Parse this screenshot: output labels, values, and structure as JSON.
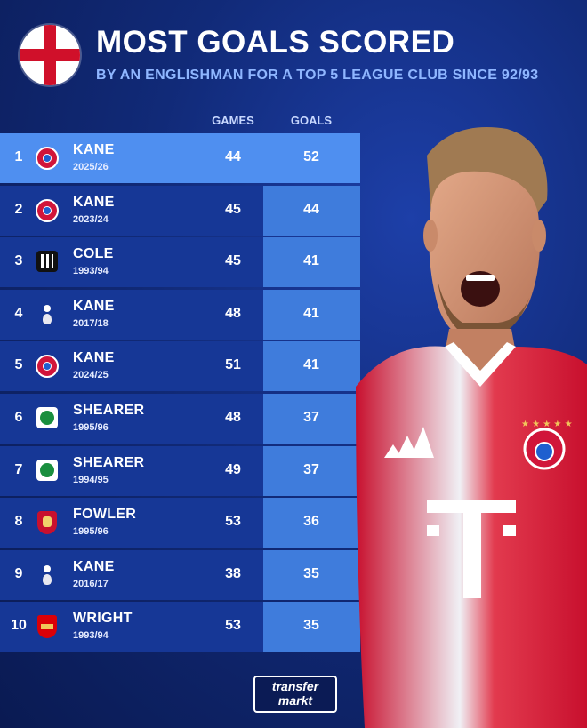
{
  "header": {
    "title": "MOST GOALS SCORED",
    "subtitle": "BY AN ENGLISHMAN FOR A TOP 5 LEAGUE CLUB SINCE 92/93",
    "flag_icon": "england-flag-icon"
  },
  "columns": {
    "games": "GAMES",
    "goals": "GOALS"
  },
  "rows": [
    {
      "rank": "1",
      "name": "KANE",
      "season": "2025/26",
      "games": "44",
      "goals": "52",
      "club": "bayern-munich-crest-icon"
    },
    {
      "rank": "2",
      "name": "KANE",
      "season": "2023/24",
      "games": "45",
      "goals": "44",
      "club": "bayern-munich-crest-icon"
    },
    {
      "rank": "3",
      "name": "COLE",
      "season": "1993/94",
      "games": "45",
      "goals": "41",
      "club": "newcastle-crest-icon"
    },
    {
      "rank": "4",
      "name": "KANE",
      "season": "2017/18",
      "games": "48",
      "goals": "41",
      "club": "tottenham-crest-icon"
    },
    {
      "rank": "5",
      "name": "KANE",
      "season": "2024/25",
      "games": "51",
      "goals": "41",
      "club": "bayern-munich-crest-icon"
    },
    {
      "rank": "6",
      "name": "SHEARER",
      "season": "1995/96",
      "games": "48",
      "goals": "37",
      "club": "blackburn-crest-icon"
    },
    {
      "rank": "7",
      "name": "SHEARER",
      "season": "1994/95",
      "games": "49",
      "goals": "37",
      "club": "blackburn-crest-icon"
    },
    {
      "rank": "8",
      "name": "FOWLER",
      "season": "1995/96",
      "games": "53",
      "goals": "36",
      "club": "liverpool-crest-icon"
    },
    {
      "rank": "9",
      "name": "KANE",
      "season": "2016/17",
      "games": "38",
      "goals": "35",
      "club": "tottenham-crest-icon"
    },
    {
      "rank": "10",
      "name": "WRIGHT",
      "season": "1993/94",
      "games": "53",
      "goals": "35",
      "club": "arsenal-crest-icon"
    }
  ],
  "branding": {
    "line1": "transfer",
    "line2": "markt"
  },
  "colors": {
    "highlight_row": "#4f8ff0",
    "row": "#163796",
    "goals_cell": "#3f7cdc",
    "subtitle": "#8fb6ff"
  }
}
